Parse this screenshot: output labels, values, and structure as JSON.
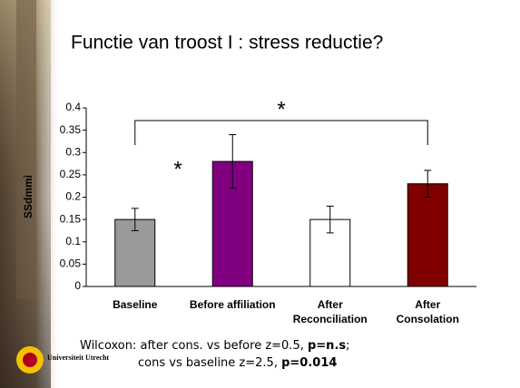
{
  "chart_data": {
    "type": "bar",
    "title": "Functie van troost I : stress reductie?",
    "y_label": "SSdmmi",
    "categories": [
      "Baseline",
      "Before affiliation",
      "After Reconciliation",
      "After Consolation"
    ],
    "values": [
      0.15,
      0.28,
      0.15,
      0.23
    ],
    "errors": [
      0.025,
      0.06,
      0.03,
      0.03
    ],
    "colors": [
      "#999999",
      "#800080",
      "#ffffff",
      "#800000"
    ],
    "ylim": [
      0,
      0.4
    ],
    "yticks": [
      0,
      0.05,
      0.1,
      0.15,
      0.2,
      0.25,
      0.3,
      0.35,
      0.4
    ],
    "annotations": [
      "*",
      "*"
    ]
  },
  "footnote": [
    [
      "Wilcoxon: after cons. vs before z=0.5, ",
      "p=n.s",
      ";"
    ],
    [
      "cons vs baseline z=2.5, ",
      "p=0.014"
    ]
  ],
  "logo": "Universiteit Utrecht"
}
